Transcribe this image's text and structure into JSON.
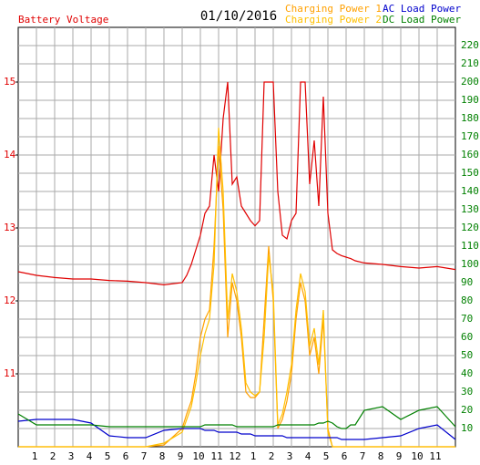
{
  "chart_data": {
    "type": "line",
    "title": "01/10/2016",
    "x": [
      0,
      1,
      2,
      3,
      4,
      5,
      6,
      7,
      8,
      9,
      9.25,
      9.5,
      9.75,
      10,
      10.25,
      10.5,
      10.75,
      11,
      11.25,
      11.5,
      11.75,
      12,
      12.25,
      12.5,
      12.75,
      13,
      13.25,
      13.5,
      13.75,
      14,
      14.25,
      14.5,
      14.75,
      15,
      15.25,
      15.5,
      15.75,
      16,
      16.25,
      16.5,
      16.75,
      17,
      17.25,
      17.5,
      17.75,
      18,
      18.25,
      18.5,
      19,
      20,
      21,
      22,
      23,
      24
    ],
    "series": [
      {
        "name": "Battery Voltage",
        "color": "#e00000",
        "axis": "y",
        "values": [
          12.4,
          12.35,
          12.32,
          12.3,
          12.3,
          12.28,
          12.27,
          12.25,
          12.22,
          12.25,
          12.35,
          12.5,
          12.7,
          12.9,
          13.2,
          13.3,
          14.0,
          13.5,
          14.5,
          15.0,
          13.6,
          13.7,
          13.3,
          13.2,
          13.1,
          13.03,
          13.1,
          15.0,
          15.0,
          15.0,
          13.5,
          12.9,
          12.85,
          13.1,
          13.2,
          15.0,
          15.0,
          13.6,
          14.2,
          13.3,
          14.8,
          13.2,
          12.7,
          12.65,
          12.62,
          12.6,
          12.58,
          12.55,
          12.52,
          12.5,
          12.47,
          12.45,
          12.47,
          12.43
        ]
      },
      {
        "name": "Charging Power 1",
        "color": "#ffa000",
        "axis": "y2",
        "values": [
          0,
          0,
          0,
          0,
          0,
          0,
          0,
          0,
          1,
          10,
          18,
          25,
          40,
          60,
          70,
          75,
          110,
          165,
          130,
          60,
          90,
          80,
          60,
          30,
          27,
          27,
          30,
          70,
          110,
          80,
          10,
          15,
          25,
          40,
          70,
          90,
          80,
          50,
          60,
          40,
          70,
          10,
          0,
          0,
          0,
          0,
          0,
          0,
          0,
          0,
          0,
          0,
          0,
          0
        ]
      },
      {
        "name": "Charging Power 2",
        "color": "#ffc000",
        "axis": "y2",
        "values": [
          0,
          0,
          0,
          0,
          0,
          0,
          0,
          0,
          2,
          8,
          15,
          22,
          35,
          50,
          62,
          70,
          100,
          175,
          140,
          70,
          95,
          85,
          65,
          35,
          30,
          28,
          30,
          60,
          105,
          85,
          12,
          18,
          30,
          45,
          75,
          95,
          85,
          55,
          65,
          45,
          75,
          8,
          0,
          0,
          0,
          0,
          0,
          0,
          0,
          0,
          0,
          0,
          0,
          0
        ]
      },
      {
        "name": "AC Load Power",
        "color": "#0000cc",
        "axis": "y2",
        "values": [
          14,
          15,
          15,
          15,
          13,
          6,
          5,
          5,
          9,
          10,
          10,
          10,
          10,
          10,
          9,
          9,
          9,
          8,
          8,
          8,
          8,
          8,
          7,
          7,
          7,
          6,
          6,
          6,
          6,
          6,
          6,
          6,
          5,
          5,
          5,
          5,
          5,
          5,
          5,
          5,
          5,
          5,
          5,
          5,
          4,
          4,
          4,
          4,
          4,
          5,
          6,
          10,
          12,
          4
        ]
      },
      {
        "name": "DC Load Power",
        "color": "#008000",
        "axis": "y2",
        "values": [
          18,
          12,
          12,
          12,
          12,
          11,
          11,
          11,
          11,
          11,
          11,
          11,
          11,
          11,
          12,
          12,
          12,
          12,
          12,
          12,
          12,
          11,
          11,
          11,
          11,
          11,
          11,
          11,
          11,
          11,
          12,
          12,
          12,
          12,
          12,
          12,
          12,
          12,
          12,
          13,
          13,
          14,
          13,
          11,
          10,
          10,
          12,
          12,
          20,
          22,
          15,
          20,
          22,
          11
        ]
      }
    ],
    "xlim": [
      0,
      24
    ],
    "xticks": [
      1,
      2,
      3,
      4,
      5,
      6,
      7,
      8,
      9,
      10,
      11,
      12,
      {
        "value": 13,
        "label": "1"
      },
      {
        "value": 14,
        "label": "2"
      },
      {
        "value": 15,
        "label": "3"
      },
      {
        "value": 16,
        "label": "4"
      },
      {
        "value": 17,
        "label": "5"
      },
      {
        "value": 18,
        "label": "6"
      },
      {
        "value": 19,
        "label": "7"
      },
      {
        "value": 20,
        "label": "8"
      },
      {
        "value": 21,
        "label": "9"
      },
      {
        "value": 22,
        "label": "10"
      },
      {
        "value": 23,
        "label": "11"
      }
    ],
    "ylim": [
      10,
      15.75
    ],
    "yticks": [
      11,
      12,
      13,
      14,
      15
    ],
    "y2lim": [
      0,
      230
    ],
    "y2ticks": [
      10,
      20,
      30,
      40,
      50,
      60,
      70,
      80,
      90,
      100,
      110,
      120,
      130,
      140,
      150,
      160,
      170,
      180,
      190,
      200,
      210,
      220
    ],
    "grid": true
  }
}
